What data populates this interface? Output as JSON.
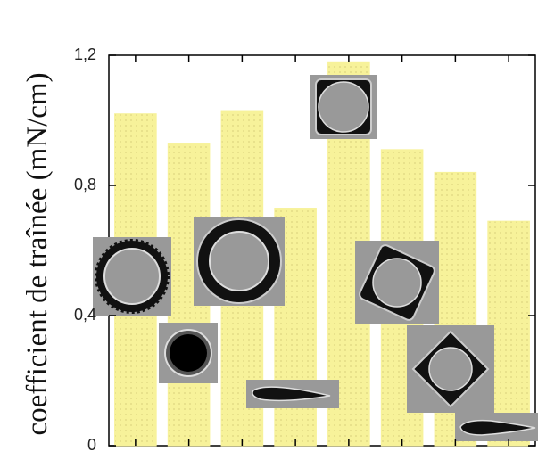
{
  "chart_data": {
    "type": "bar",
    "y_label": "coefficient de traînée (mN/cm)",
    "categories": [
      null,
      null,
      null,
      null,
      null,
      null,
      null,
      null
    ],
    "values": [
      1.02,
      0.93,
      1.03,
      0.73,
      1.18,
      0.91,
      0.84,
      0.69
    ],
    "color": "#f7f29a",
    "ylim": [
      0,
      1.2
    ],
    "yticks": [
      0,
      {
        "value": 0.4,
        "label": "0,4"
      },
      {
        "value": 0.8,
        "label": "0,8"
      },
      {
        "value": 1.2,
        "label": "1,2"
      }
    ]
  }
}
